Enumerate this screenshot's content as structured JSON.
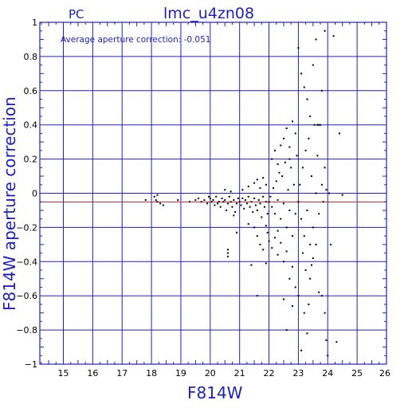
{
  "chart_data": {
    "type": "scatter",
    "title": "lmc_u4zn08",
    "subtitle": "PC",
    "annotation": "Average aperture correction:  -0.051",
    "xlabel": "F814W",
    "ylabel": "F814W aperture correction",
    "xlim": [
      14.2,
      26
    ],
    "ylim": [
      -1,
      1
    ],
    "xticks": [
      "15",
      "16",
      "17",
      "18",
      "19",
      "20",
      "21",
      "22",
      "23",
      "24",
      "25",
      "26"
    ],
    "yticks": [
      "1",
      "0.8",
      "0.6",
      "0.4",
      "0.2",
      "0",
      "−0.2",
      "−0.4",
      "−0.6",
      "−0.8",
      "−1"
    ],
    "grid": true,
    "reference_line": -0.051,
    "colors": {
      "axes": "#2020c0",
      "reference_line": "#c03030",
      "points": "#000000"
    },
    "points": [
      [
        17.8,
        -0.04
      ],
      [
        18.1,
        -0.02
      ],
      [
        18.15,
        -0.04
      ],
      [
        18.2,
        -0.05
      ],
      [
        18.3,
        -0.06
      ],
      [
        18.4,
        -0.07
      ],
      [
        18.2,
        -0.01
      ],
      [
        18.9,
        -0.04
      ],
      [
        19.3,
        -0.05
      ],
      [
        19.5,
        -0.04
      ],
      [
        19.6,
        -0.03
      ],
      [
        19.7,
        -0.05
      ],
      [
        19.8,
        -0.04
      ],
      [
        19.9,
        -0.06
      ],
      [
        19.95,
        -0.02
      ],
      [
        20.0,
        -0.03
      ],
      [
        20.05,
        -0.05
      ],
      [
        20.1,
        -0.04
      ],
      [
        20.15,
        -0.07
      ],
      [
        20.2,
        -0.02
      ],
      [
        20.25,
        -0.06
      ],
      [
        20.3,
        -0.05
      ],
      [
        20.35,
        -0.08
      ],
      [
        20.4,
        -0.03
      ],
      [
        20.45,
        -0.05
      ],
      [
        20.5,
        -0.04
      ],
      [
        20.55,
        -0.1
      ],
      [
        20.6,
        -0.06
      ],
      [
        20.65,
        -0.02
      ],
      [
        20.7,
        -0.05
      ],
      [
        20.75,
        -0.08
      ],
      [
        20.8,
        -0.04
      ],
      [
        20.85,
        -0.11
      ],
      [
        20.9,
        -0.06
      ],
      [
        20.95,
        -0.03
      ],
      [
        20.6,
        -0.33
      ],
      [
        20.6,
        -0.35
      ],
      [
        20.6,
        -0.37
      ],
      [
        20.9,
        -0.23
      ],
      [
        20.8,
        -0.13
      ],
      [
        20.7,
        0.01
      ],
      [
        20.5,
        0.02
      ],
      [
        21.0,
        -0.05
      ],
      [
        21.05,
        -0.07
      ],
      [
        21.1,
        -0.03
      ],
      [
        21.15,
        -0.09
      ],
      [
        21.2,
        -0.04
      ],
      [
        21.25,
        -0.06
      ],
      [
        21.3,
        -0.02
      ],
      [
        21.35,
        -0.08
      ],
      [
        21.4,
        -0.05
      ],
      [
        21.45,
        -0.11
      ],
      [
        21.5,
        -0.03
      ],
      [
        21.55,
        -0.07
      ],
      [
        21.6,
        -0.1
      ],
      [
        21.65,
        -0.04
      ],
      [
        21.7,
        -0.06
      ],
      [
        21.75,
        -0.14
      ],
      [
        21.8,
        -0.02
      ],
      [
        21.85,
        -0.08
      ],
      [
        21.9,
        -0.05
      ],
      [
        21.95,
        -0.12
      ],
      [
        21.1,
        0.02
      ],
      [
        21.3,
        0.04
      ],
      [
        21.5,
        0.06
      ],
      [
        21.6,
        0.08
      ],
      [
        21.7,
        0.03
      ],
      [
        21.8,
        0.09
      ],
      [
        21.9,
        0.05
      ],
      [
        21.3,
        -0.18
      ],
      [
        21.5,
        -0.2
      ],
      [
        21.6,
        -0.25
      ],
      [
        21.7,
        -0.3
      ],
      [
        21.8,
        -0.33
      ],
      [
        21.9,
        -0.41
      ],
      [
        21.4,
        -0.42
      ],
      [
        21.6,
        -0.6
      ],
      [
        21.9,
        -0.19
      ],
      [
        21.95,
        -0.23
      ],
      [
        22.0,
        -0.05
      ],
      [
        22.05,
        -0.02
      ],
      [
        22.1,
        -0.08
      ],
      [
        22.15,
        0.03
      ],
      [
        22.2,
        -0.12
      ],
      [
        22.25,
        0.07
      ],
      [
        22.3,
        -0.04
      ],
      [
        22.35,
        0.12
      ],
      [
        22.4,
        -0.15
      ],
      [
        22.45,
        0.1
      ],
      [
        22.5,
        -0.06
      ],
      [
        22.55,
        0.18
      ],
      [
        22.6,
        -0.2
      ],
      [
        22.65,
        0.02
      ],
      [
        22.7,
        -0.1
      ],
      [
        22.75,
        0.15
      ],
      [
        22.8,
        -0.25
      ],
      [
        22.85,
        0.05
      ],
      [
        22.9,
        -0.12
      ],
      [
        22.95,
        0.22
      ],
      [
        22.0,
        -0.28
      ],
      [
        22.1,
        -0.32
      ],
      [
        22.2,
        -0.26
      ],
      [
        22.3,
        -0.36
      ],
      [
        22.4,
        -0.29
      ],
      [
        22.5,
        -0.4
      ],
      [
        22.6,
        -0.34
      ],
      [
        22.7,
        -0.5
      ],
      [
        22.8,
        -0.43
      ],
      [
        22.9,
        -0.55
      ],
      [
        22.5,
        -0.62
      ],
      [
        22.6,
        -0.8
      ],
      [
        22.8,
        -0.66
      ],
      [
        22.3,
        -0.22
      ],
      [
        22.2,
        0.25
      ],
      [
        22.4,
        0.28
      ],
      [
        22.5,
        0.32
      ],
      [
        22.6,
        0.38
      ],
      [
        22.7,
        0.27
      ],
      [
        22.8,
        0.42
      ],
      [
        22.9,
        0.35
      ],
      [
        22.1,
        0.2
      ],
      [
        22.3,
        0.17
      ],
      [
        22.7,
        0.2
      ],
      [
        23.0,
        -0.05
      ],
      [
        23.05,
        0.05
      ],
      [
        23.1,
        -0.15
      ],
      [
        23.15,
        0.15
      ],
      [
        23.2,
        -0.25
      ],
      [
        23.25,
        0.25
      ],
      [
        23.3,
        -0.1
      ],
      [
        23.35,
        0.32
      ],
      [
        23.4,
        -0.3
      ],
      [
        23.45,
        0.1
      ],
      [
        23.5,
        -0.2
      ],
      [
        23.55,
        0.4
      ],
      [
        23.6,
        0.0
      ],
      [
        23.65,
        0.22
      ],
      [
        23.7,
        -0.12
      ],
      [
        23.75,
        0.4
      ],
      [
        23.8,
        0.05
      ],
      [
        23.85,
        -0.05
      ],
      [
        23.9,
        0.15
      ],
      [
        23.95,
        0.02
      ],
      [
        23.0,
        0.85
      ],
      [
        23.1,
        0.7
      ],
      [
        23.2,
        0.62
      ],
      [
        23.3,
        0.55
      ],
      [
        23.4,
        0.45
      ],
      [
        23.5,
        0.75
      ],
      [
        23.6,
        0.9
      ],
      [
        23.65,
        0.4
      ],
      [
        23.7,
        0.4
      ],
      [
        23.8,
        0.6
      ],
      [
        23.9,
        0.95
      ],
      [
        23.0,
        -0.6
      ],
      [
        23.1,
        -0.92
      ],
      [
        23.2,
        -0.7
      ],
      [
        23.3,
        -0.82
      ],
      [
        23.4,
        -0.5
      ],
      [
        23.5,
        -0.38
      ],
      [
        23.6,
        -0.3
      ],
      [
        23.7,
        -0.58
      ],
      [
        23.8,
        -0.6
      ],
      [
        23.9,
        -0.7
      ],
      [
        23.95,
        -0.86
      ],
      [
        23.15,
        -0.35
      ],
      [
        23.25,
        -0.45
      ],
      [
        23.35,
        -0.65
      ],
      [
        23.45,
        -0.42
      ],
      [
        24.2,
        0.92
      ],
      [
        24.4,
        0.35
      ],
      [
        24.5,
        -0.01
      ],
      [
        24.3,
        -0.87
      ],
      [
        24.1,
        -0.3
      ],
      [
        24.0,
        -0.95
      ],
      [
        24.05,
        0.0
      ]
    ]
  }
}
